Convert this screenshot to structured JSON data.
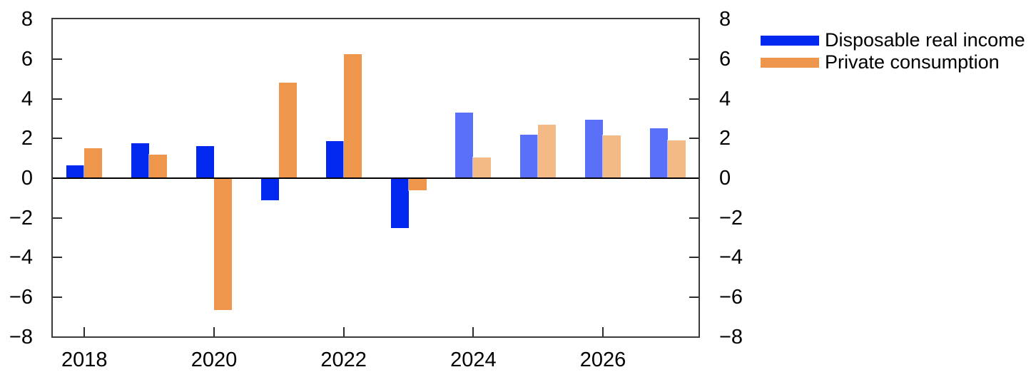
{
  "chart_data": {
    "type": "bar",
    "categories": [
      "2018",
      "2019",
      "2020",
      "2021",
      "2022",
      "2023",
      "2024",
      "2025",
      "2026",
      "2027"
    ],
    "series": [
      {
        "name": "Disposable real income",
        "values": [
          0.65,
          1.75,
          1.6,
          -1.1,
          1.85,
          -2.5,
          3.3,
          2.2,
          2.95,
          2.5
        ],
        "color": "#0228f0",
        "forecast_color": "#5b70f8"
      },
      {
        "name": "Private consumption",
        "values": [
          1.5,
          1.2,
          -6.65,
          4.8,
          6.25,
          -0.6,
          1.05,
          2.7,
          2.15,
          1.9
        ],
        "color": "#ee964b",
        "forecast_color": "#f4ba85"
      }
    ],
    "forecast_start_category": "2024",
    "forecast_start_index": 6,
    "title": "",
    "xlabel": "",
    "ylabel": "",
    "ylim": [
      -8,
      8
    ],
    "ytick_values": [
      8,
      6,
      4,
      2,
      0,
      -2,
      -4,
      -6,
      -8
    ],
    "ytick_labels": [
      "8",
      "6",
      "4",
      "2",
      "0",
      "−2",
      "−4",
      "−6",
      "−8"
    ],
    "xtick_labels": [
      "2018",
      "2020",
      "2022",
      "2024",
      "2026"
    ],
    "xtick_years": [
      2018,
      2020,
      2022,
      2024,
      2026
    ],
    "grid": false,
    "zero_line": true,
    "tick_direction": "in",
    "dual_y_axis_labels": true,
    "legend": {
      "position": "top-right",
      "items": [
        {
          "label": "Disposable real income",
          "color": "#0228f0"
        },
        {
          "label": "Private consumption",
          "color": "#ee964b"
        }
      ]
    }
  }
}
